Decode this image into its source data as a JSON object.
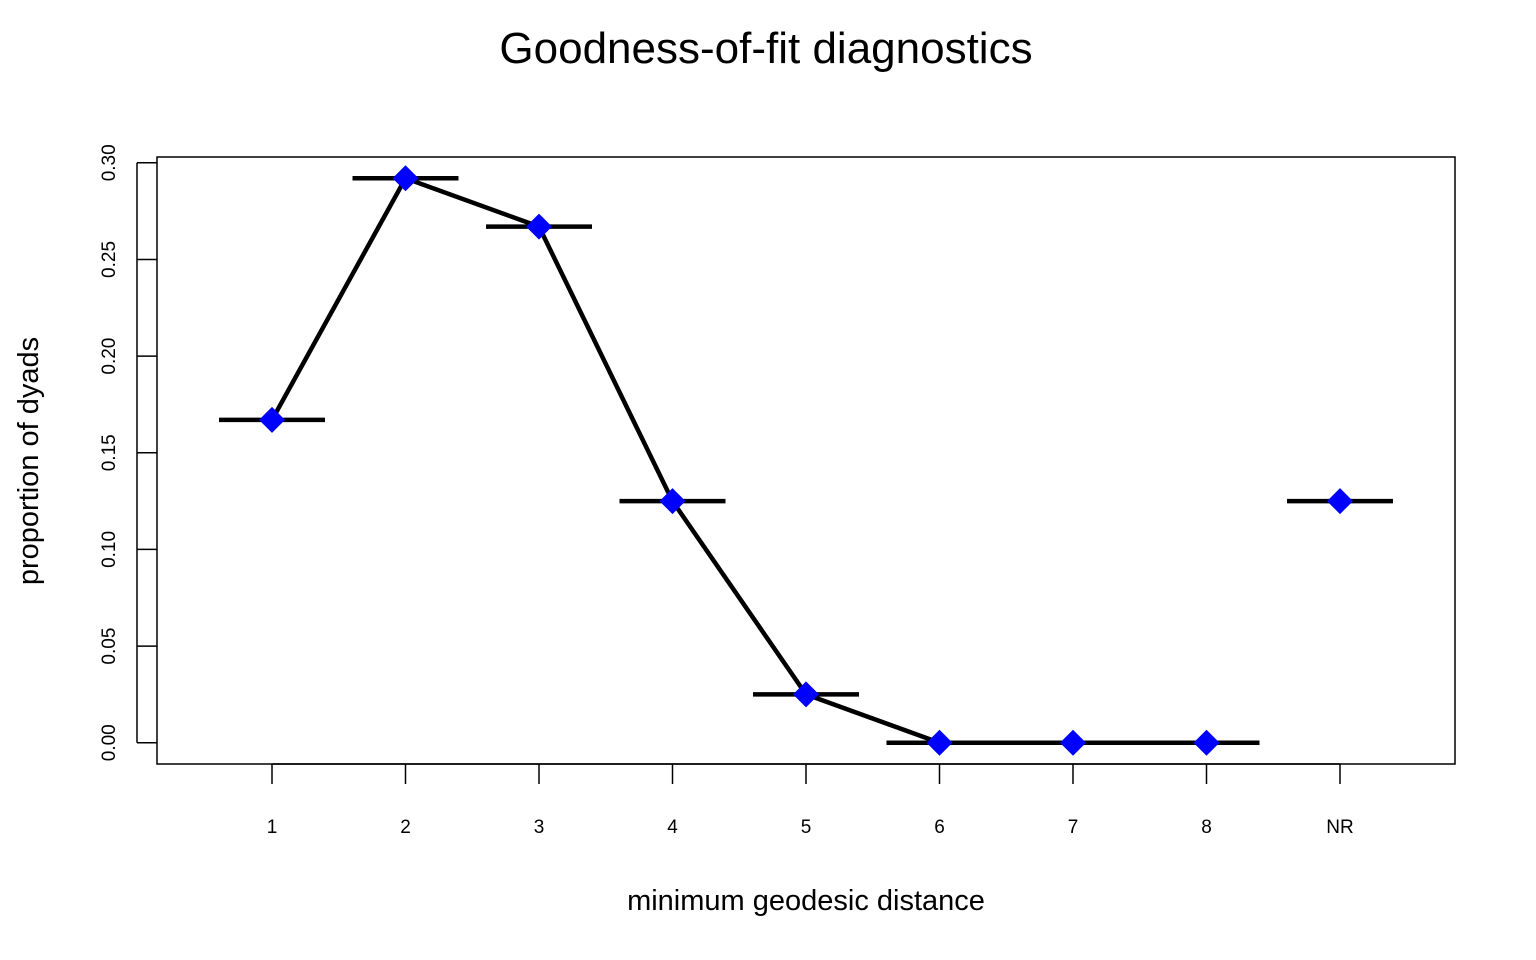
{
  "chart_data": {
    "type": "line",
    "title": "Goodness-of-fit diagnostics",
    "xlabel": "minimum geodesic distance",
    "ylabel": "proportion of dyads",
    "categories": [
      "1",
      "2",
      "3",
      "4",
      "5",
      "6",
      "7",
      "8",
      "NR"
    ],
    "ylim": [
      -0.011,
      0.303
    ],
    "yticks": [
      0.0,
      0.05,
      0.1,
      0.15,
      0.2,
      0.25,
      0.3
    ],
    "ytick_labels": [
      "0.00",
      "0.05",
      "0.10",
      "0.15",
      "0.20",
      "0.25",
      "0.30"
    ],
    "grid": false,
    "legend": "none",
    "series": [
      {
        "values": [
          0.167,
          0.292,
          0.267,
          0.125,
          0.025,
          0.0,
          0.0,
          0.0,
          0.125
        ],
        "marker": "diamond",
        "color": "#0000ff",
        "connected_through": 8
      }
    ],
    "horizontal_bars": [
      {
        "category": "1",
        "value": 0.167
      },
      {
        "category": "2",
        "value": 0.292
      },
      {
        "category": "3",
        "value": 0.267
      },
      {
        "category": "4",
        "value": 0.125
      },
      {
        "category": "5",
        "value": 0.025
      },
      {
        "category": "6",
        "value": 0.0
      },
      {
        "category": "7",
        "value": 0.0
      },
      {
        "category": "8",
        "value": 0.0
      },
      {
        "category": "NR",
        "value": 0.125
      }
    ],
    "colors": {
      "line": "#000000",
      "point": "#0000ff",
      "bar": "#000000"
    }
  }
}
